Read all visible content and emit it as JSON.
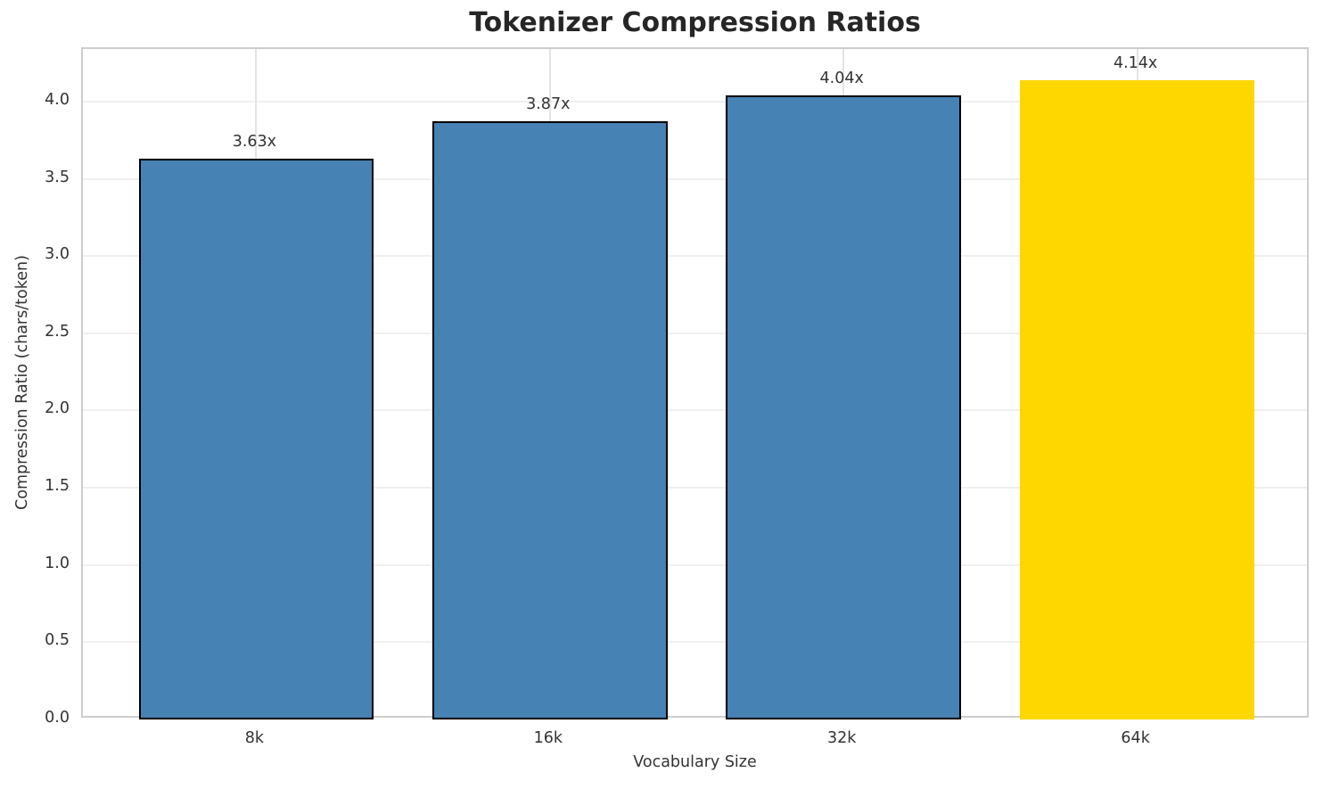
{
  "chart_data": {
    "type": "bar",
    "title": "Tokenizer Compression Ratios",
    "xlabel": "Vocabulary Size",
    "ylabel": "Compression Ratio (chars/token)",
    "categories": [
      "8k",
      "16k",
      "32k",
      "64k"
    ],
    "values": [
      3.63,
      3.87,
      4.04,
      4.14
    ],
    "bar_labels": [
      "3.63x",
      "3.87x",
      "4.04x",
      "4.14x"
    ],
    "bar_colors": [
      "#4682B4",
      "#4682B4",
      "#4682B4",
      "#FFD700"
    ],
    "bar_edge_colors": [
      "#000000",
      "#000000",
      "#000000",
      "none"
    ],
    "bar_width": 0.8,
    "yticks": [
      0.0,
      0.5,
      1.0,
      1.5,
      2.0,
      2.5,
      3.0,
      3.5,
      4.0
    ],
    "ytick_labels": [
      "0.0",
      "0.5",
      "1.0",
      "1.5",
      "2.0",
      "2.5",
      "3.0",
      "3.5",
      "4.0"
    ],
    "ylim": [
      0,
      4.34
    ],
    "xlim": [
      -0.59,
      3.59
    ],
    "grid": true,
    "legend": "none"
  }
}
